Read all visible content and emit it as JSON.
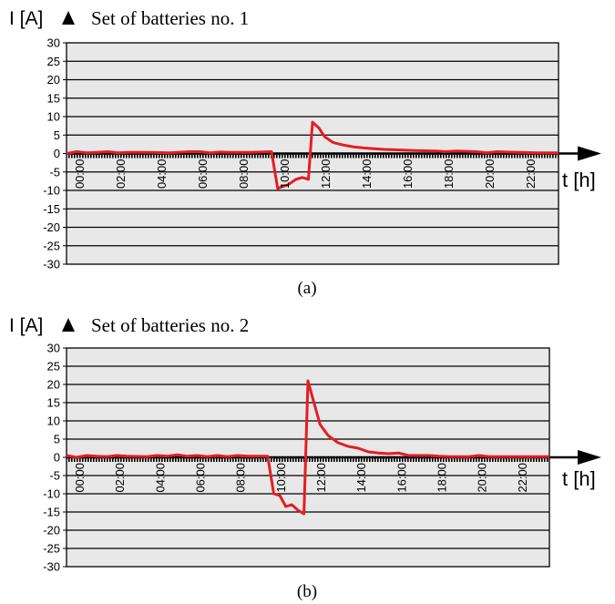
{
  "chart_data": [
    {
      "type": "line",
      "title": "Set of batteries no. 1",
      "ylabel": "I [A]",
      "xlabel": "t [h]",
      "caption": "(a)",
      "ylim": [
        -30,
        30
      ],
      "yticks": [
        30,
        25,
        20,
        15,
        10,
        5,
        0,
        -5,
        -10,
        -15,
        -20,
        -25,
        -30
      ],
      "xlim": [
        0,
        24
      ],
      "xticks": [
        "00:00",
        "02:00",
        "04:00",
        "06:00",
        "08:00",
        "10:00",
        "12:00",
        "14:00",
        "16:00",
        "18:00",
        "20:00",
        "22:00"
      ],
      "grid": true,
      "line_color": "#e31e24",
      "plot_bg": "#e8e8e8",
      "series": [
        {
          "x": [
            0,
            0.5,
            1,
            1.5,
            2,
            2.5,
            3,
            4,
            5,
            6,
            6.5,
            7,
            7.5,
            8,
            9,
            10,
            10.3,
            10.5,
            10.8,
            11.2,
            11.5,
            11.8,
            12,
            12.3,
            12.6,
            13,
            13.5,
            14,
            14.5,
            15,
            15.5,
            16,
            17,
            18,
            18.5,
            19,
            20,
            20.5,
            21,
            22,
            23,
            24
          ],
          "y": [
            0,
            0.5,
            0.2,
            0.3,
            0.5,
            0.2,
            0.3,
            0.3,
            0.2,
            0.5,
            0.5,
            0.2,
            0.4,
            0.3,
            0.3,
            0.5,
            -9.5,
            -9,
            -8.5,
            -7,
            -6.5,
            -7,
            8.5,
            7,
            4.5,
            3,
            2.3,
            1.8,
            1.5,
            1.3,
            1.1,
            1,
            0.8,
            0.7,
            0.5,
            0.7,
            0.5,
            0.2,
            0.5,
            0.3,
            0.2,
            0.2
          ]
        }
      ]
    },
    {
      "type": "line",
      "title": "Set of batteries no. 2",
      "ylabel": "I [A]",
      "xlabel": "t [h]",
      "caption": "(b)",
      "ylim": [
        -30,
        30
      ],
      "yticks": [
        30,
        25,
        20,
        15,
        10,
        5,
        0,
        -5,
        -10,
        -15,
        -20,
        -25,
        -30
      ],
      "xlim": [
        0,
        24
      ],
      "xticks": [
        "00:00",
        "02:00",
        "04:00",
        "06:00",
        "08:00",
        "10:00",
        "12:00",
        "14:00",
        "16:00",
        "18:00",
        "20:00",
        "22:00"
      ],
      "grid": true,
      "line_color": "#e31e24",
      "plot_bg": "#e8e8e8",
      "series": [
        {
          "x": [
            0,
            0.5,
            1,
            1.5,
            2,
            2.5,
            3,
            4,
            4.5,
            5,
            5.5,
            6,
            6.5,
            7,
            7.5,
            8,
            8.5,
            9,
            10,
            10.3,
            10.6,
            10.9,
            11.2,
            11.5,
            11.8,
            12,
            12.3,
            12.6,
            13,
            13.5,
            14,
            14.5,
            15,
            15.5,
            16,
            16.5,
            17,
            17.5,
            18,
            18.5,
            19,
            20,
            20.5,
            21,
            22,
            23,
            24
          ],
          "y": [
            0.5,
            0,
            0.5,
            0.3,
            0.2,
            0.5,
            0.3,
            0.2,
            0.5,
            0.3,
            0.7,
            0.3,
            0.5,
            0.2,
            0.5,
            0.2,
            0.5,
            0.3,
            0.3,
            -10,
            -10.5,
            -13.5,
            -13,
            -14.5,
            -15.5,
            21,
            15,
            9,
            6,
            4,
            3,
            2.5,
            1.5,
            1.2,
            1,
            1.2,
            0.5,
            0.5,
            0.5,
            0.3,
            0.2,
            0.2,
            0.5,
            0.2,
            0.2,
            0.2,
            0.2
          ]
        }
      ]
    }
  ]
}
